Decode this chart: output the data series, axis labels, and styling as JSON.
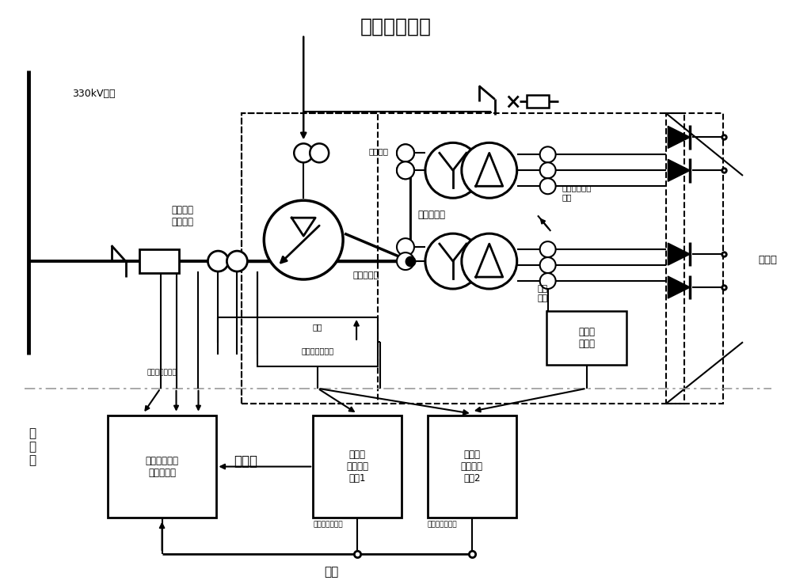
{
  "title": "整流变压器组",
  "bg_color": "#ffffff",
  "black": "#000000",
  "dash_boundary_color": "#888888",
  "label_330kv": "330kV母线",
  "label_em_ct": "电磁式电\n流互感器",
  "label_voltage_reg": "调压变压器",
  "label_third_winding": "第三绕组",
  "label_rect_transformer": "整流变压器",
  "label_electronic_ct": "电子式电流互\n感器",
  "label_rect_cabinet": "整流柜",
  "label_shielded_cable": "屏蔽\n电缆",
  "label_predata": "前置数\n据采集",
  "label_gear_pos": "档位",
  "label_oltc": "有载调压控制器",
  "label_switch_qty": "开关量",
  "label_vreg_protection": "调压变压器保护",
  "label_rect1_protection": "整流变压器保护",
  "label_rect2_protection": "整流变压器保护",
  "label_secondary_room": "二\n次\n室",
  "label_vreg_relay": "调压变压器继\n电保护装置",
  "label_rect1_relay": "整流变\n继电保护\n装置1",
  "label_rect2_relay": "整流变\n继电保护\n装置2",
  "label_fiber": "光纤"
}
